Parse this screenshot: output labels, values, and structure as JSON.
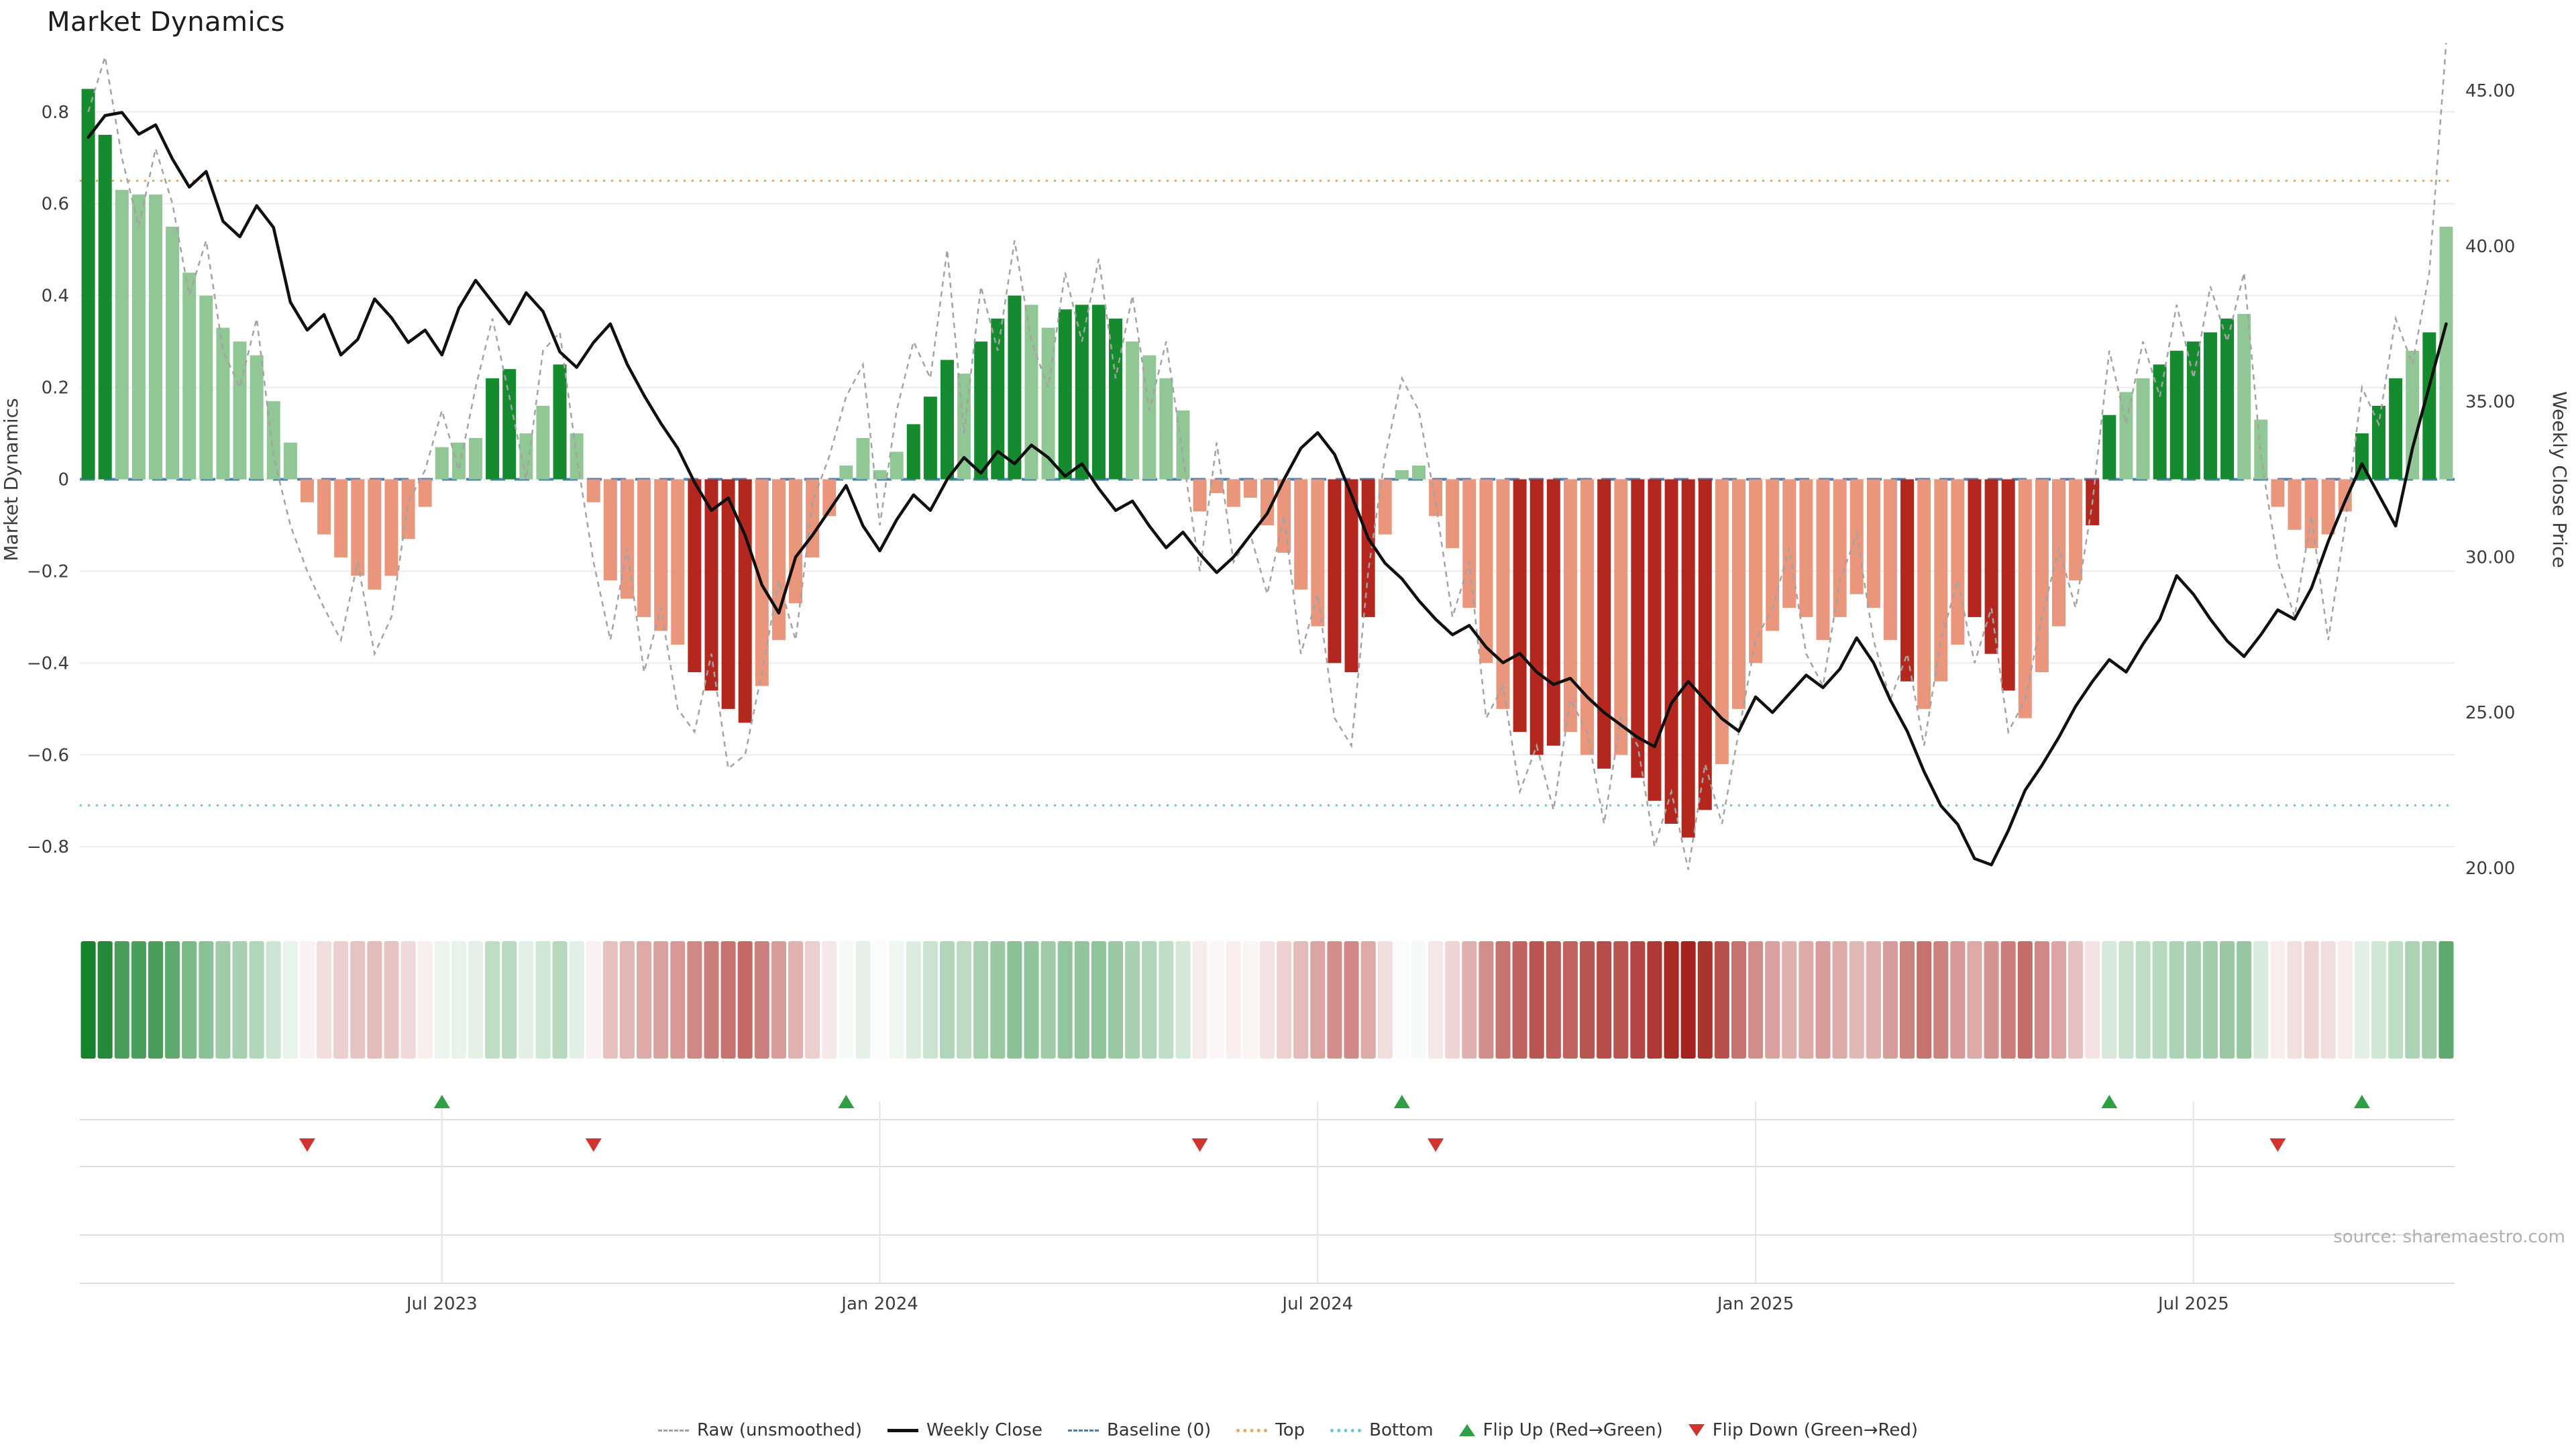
{
  "title": "Market Dynamics",
  "source_text": "source: sharemaestro.com",
  "colors": {
    "dark_green": "#168a2e",
    "light_green": "#90c795",
    "dark_red": "#b3271e",
    "light_red": "#ea967d",
    "weekly_close": "#101010",
    "raw": "#a3a3a3",
    "baseline": "#4d7fb3",
    "top": "#e2a963",
    "bottom": "#62c8d2",
    "grid": "#ebebeb",
    "flip_up": "#2f9e44",
    "flip_down": "#cf3430",
    "axis_text": "#3c3c3c",
    "background": "#ffffff"
  },
  "chart_data": {
    "type": "bar",
    "title": "Market Dynamics",
    "frequency": "weekly",
    "x_axis": {
      "tick_labels": [
        "Jul 2023",
        "Jan 2024",
        "Jul 2024",
        "Jan 2025",
        "Jul 2025"
      ],
      "tick_indices": [
        21,
        47,
        73,
        99,
        125
      ]
    },
    "left_axis": {
      "label": "Market Dynamics",
      "ticks": [
        -0.8,
        -0.6,
        -0.4,
        -0.2,
        0,
        0.2,
        0.4,
        0.6,
        0.8
      ],
      "tick_labels": [
        "−0.8",
        "−0.6",
        "−0.4",
        "−0.2",
        "0",
        "0.2",
        "0.4",
        "0.6",
        "0.8"
      ],
      "range": [
        -0.88,
        0.88
      ]
    },
    "right_axis": {
      "label": "Weekly Close Price",
      "ticks": [
        20,
        25,
        30,
        35,
        40,
        45
      ],
      "tick_labels": [
        "20.00",
        "25.00",
        "30.00",
        "35.00",
        "40.00",
        "45.00"
      ],
      "range": [
        19.5,
        45.5
      ]
    },
    "reference_lines": {
      "baseline": 0,
      "top": 0.65,
      "bottom": -0.71
    },
    "series": [
      {
        "name": "Market Dynamics",
        "type": "bar",
        "axis": "left",
        "values": [
          0.85,
          0.75,
          0.63,
          0.62,
          0.62,
          0.55,
          0.45,
          0.4,
          0.33,
          0.3,
          0.27,
          0.17,
          0.08,
          -0.05,
          -0.12,
          -0.17,
          -0.21,
          -0.24,
          -0.21,
          -0.13,
          -0.06,
          0.07,
          0.08,
          0.09,
          0.22,
          0.24,
          0.1,
          0.16,
          0.25,
          0.1,
          -0.05,
          -0.22,
          -0.26,
          -0.3,
          -0.33,
          -0.36,
          -0.42,
          -0.46,
          -0.5,
          -0.53,
          -0.45,
          -0.35,
          -0.27,
          -0.17,
          -0.08,
          0.03,
          0.09,
          0.02,
          0.06,
          0.12,
          0.18,
          0.26,
          0.23,
          0.3,
          0.35,
          0.4,
          0.38,
          0.33,
          0.37,
          0.38,
          0.38,
          0.35,
          0.3,
          0.27,
          0.22,
          0.15,
          -0.07,
          -0.03,
          -0.06,
          -0.04,
          -0.1,
          -0.16,
          -0.24,
          -0.32,
          -0.4,
          -0.42,
          -0.3,
          -0.12,
          0.02,
          0.03,
          -0.08,
          -0.15,
          -0.28,
          -0.4,
          -0.5,
          -0.55,
          -0.6,
          -0.58,
          -0.55,
          -0.6,
          -0.63,
          -0.6,
          -0.65,
          -0.7,
          -0.75,
          -0.78,
          -0.72,
          -0.62,
          -0.5,
          -0.4,
          -0.33,
          -0.28,
          -0.3,
          -0.35,
          -0.3,
          -0.25,
          -0.28,
          -0.35,
          -0.44,
          -0.5,
          -0.44,
          -0.36,
          -0.3,
          -0.38,
          -0.46,
          -0.52,
          -0.42,
          -0.32,
          -0.22,
          -0.1,
          0.14,
          0.19,
          0.22,
          0.25,
          0.28,
          0.3,
          0.32,
          0.35,
          0.36,
          0.13,
          -0.06,
          -0.11,
          -0.15,
          -0.12,
          -0.07,
          0.1,
          0.16,
          0.22,
          0.28,
          0.32,
          0.55
        ]
      },
      {
        "name": "Raw (unsmoothed)",
        "type": "line",
        "axis": "left",
        "values": [
          0.8,
          0.92,
          0.7,
          0.55,
          0.72,
          0.6,
          0.4,
          0.52,
          0.28,
          0.2,
          0.35,
          0.05,
          -0.1,
          -0.2,
          -0.28,
          -0.35,
          -0.18,
          -0.38,
          -0.3,
          -0.05,
          0.02,
          0.15,
          0.02,
          0.2,
          0.35,
          0.18,
          0.0,
          0.28,
          0.32,
          0.05,
          -0.18,
          -0.35,
          -0.15,
          -0.42,
          -0.28,
          -0.5,
          -0.55,
          -0.38,
          -0.63,
          -0.6,
          -0.42,
          -0.22,
          -0.35,
          -0.05,
          0.05,
          0.18,
          0.25,
          -0.1,
          0.15,
          0.3,
          0.22,
          0.5,
          0.1,
          0.42,
          0.28,
          0.52,
          0.3,
          0.2,
          0.45,
          0.3,
          0.48,
          0.22,
          0.4,
          0.15,
          0.3,
          0.05,
          -0.2,
          0.08,
          -0.18,
          -0.12,
          -0.25,
          -0.08,
          -0.38,
          -0.25,
          -0.52,
          -0.58,
          -0.2,
          0.05,
          0.22,
          0.15,
          -0.05,
          -0.3,
          -0.18,
          -0.52,
          -0.45,
          -0.68,
          -0.58,
          -0.72,
          -0.48,
          -0.55,
          -0.75,
          -0.52,
          -0.58,
          -0.8,
          -0.68,
          -0.85,
          -0.62,
          -0.75,
          -0.55,
          -0.35,
          -0.28,
          -0.15,
          -0.38,
          -0.45,
          -0.22,
          -0.12,
          -0.35,
          -0.48,
          -0.38,
          -0.58,
          -0.35,
          -0.22,
          -0.4,
          -0.28,
          -0.55,
          -0.48,
          -0.3,
          -0.15,
          -0.28,
          -0.05,
          0.28,
          0.12,
          0.3,
          0.18,
          0.38,
          0.22,
          0.42,
          0.3,
          0.45,
          0.05,
          -0.18,
          -0.3,
          -0.08,
          -0.35,
          -0.1,
          0.2,
          0.12,
          0.35,
          0.25,
          0.45,
          0.95
        ]
      },
      {
        "name": "Weekly Close",
        "type": "line",
        "axis": "right",
        "values": [
          43.5,
          44.2,
          44.3,
          43.6,
          43.9,
          42.8,
          41.9,
          42.4,
          40.8,
          40.3,
          41.3,
          40.6,
          38.2,
          37.3,
          37.8,
          36.5,
          37.0,
          38.3,
          37.7,
          36.9,
          37.3,
          36.5,
          38.0,
          38.9,
          38.2,
          37.5,
          38.5,
          37.9,
          36.6,
          36.1,
          36.9,
          37.5,
          36.2,
          35.2,
          34.3,
          33.5,
          32.4,
          31.5,
          31.9,
          30.7,
          29.1,
          28.2,
          30.0,
          30.7,
          31.5,
          32.3,
          31.0,
          30.2,
          31.2,
          32.0,
          31.5,
          32.5,
          33.2,
          32.7,
          33.4,
          33.0,
          33.6,
          33.2,
          32.6,
          33.0,
          32.2,
          31.5,
          31.8,
          31.0,
          30.3,
          30.8,
          30.1,
          29.5,
          30.0,
          30.7,
          31.4,
          32.5,
          33.5,
          34.0,
          33.3,
          32.0,
          30.6,
          29.8,
          29.3,
          28.6,
          28.0,
          27.5,
          27.8,
          27.1,
          26.6,
          26.9,
          26.3,
          25.9,
          26.1,
          25.5,
          25.0,
          24.6,
          24.2,
          23.9,
          25.3,
          26.0,
          25.4,
          24.8,
          24.4,
          25.5,
          25.0,
          25.6,
          26.2,
          25.8,
          26.4,
          27.4,
          26.6,
          25.4,
          24.4,
          23.1,
          22.0,
          21.4,
          20.3,
          20.1,
          21.2,
          22.5,
          23.3,
          24.2,
          25.2,
          26.0,
          26.7,
          26.3,
          27.2,
          28.0,
          29.4,
          28.8,
          28.0,
          27.3,
          26.8,
          27.5,
          28.3,
          28.0,
          29.0,
          30.5,
          31.8,
          33.0,
          32.0,
          31.0,
          33.5,
          35.5,
          37.5
        ]
      }
    ],
    "bar_shades": "ddllllllllllllllllllllllddlldlllllllddddllllllllldddldddllddddlllllllllllldddlllllllldddlldldddddllllllllllldllldddllllddlldddddllllllldddld",
    "flip_up_indices": [
      21,
      45,
      78,
      120,
      135
    ],
    "flip_down_indices": [
      13,
      30,
      66,
      80,
      130
    ],
    "heatmap_source": "series.0"
  },
  "legend": {
    "items": [
      {
        "label": "Raw (unsmoothed)",
        "swatch": "dash",
        "color": "#a3a3a3"
      },
      {
        "label": "Weekly Close",
        "swatch": "solid",
        "color": "#101010"
      },
      {
        "label": "Baseline (0)",
        "swatch": "dash",
        "color": "#4d7fb3"
      },
      {
        "label": "Top",
        "swatch": "dot",
        "color": "#e2a963"
      },
      {
        "label": "Bottom",
        "swatch": "dot",
        "color": "#62c8d2"
      },
      {
        "label": "Flip Up (Red→Green)",
        "swatch": "up",
        "color": "#2f9e44"
      },
      {
        "label": "Flip Down (Green→Red)",
        "swatch": "down",
        "color": "#cf3430"
      }
    ]
  }
}
